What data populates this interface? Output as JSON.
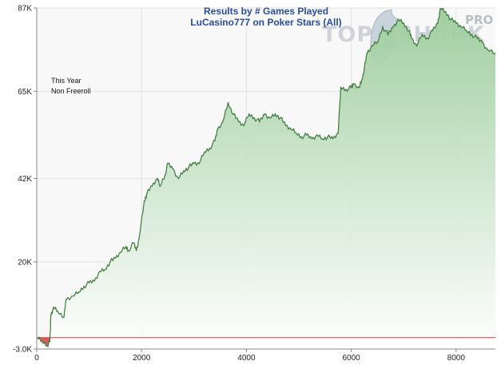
{
  "chart_data": {
    "type": "area",
    "title": "Results by # Games Played",
    "subtitle": "LuCasino777 on Poker Stars (All)",
    "annotations": [
      "This Year",
      "Non Freeroll"
    ],
    "xlabel": "",
    "ylabel": "",
    "xlim": [
      0,
      8750
    ],
    "ylim": [
      -3000,
      87000
    ],
    "x_ticks": [
      0,
      2000,
      4000,
      6000,
      8000
    ],
    "x_tick_labels": [
      "0",
      "2000",
      "4000",
      "6000",
      "8000"
    ],
    "y_ticks": [
      -3000,
      20000,
      42000,
      65000,
      87000
    ],
    "y_tick_labels": [
      "-3.0K",
      "20K",
      "42K",
      "65K",
      "87K"
    ],
    "grid": true,
    "legend": "none",
    "reference_line": 0,
    "colors": {
      "line": "#3d7a3d",
      "fill_top": "#9ccc9c",
      "fill_bottom": "#ffffff",
      "zero_line": "#cc4444",
      "negative_fill": "#d04040",
      "title": "#2a4c9a",
      "plot_bg": "#f8f8f8",
      "grid": "#e2e2e2"
    },
    "series": [
      {
        "name": "",
        "points": [
          [
            0,
            0
          ],
          [
            100,
            -1000
          ],
          [
            200,
            -2000
          ],
          [
            250,
            -1000
          ],
          [
            270,
            6000
          ],
          [
            320,
            8000
          ],
          [
            400,
            7000
          ],
          [
            520,
            5500
          ],
          [
            560,
            10000
          ],
          [
            700,
            11000
          ],
          [
            800,
            12000
          ],
          [
            900,
            13500
          ],
          [
            1000,
            14500
          ],
          [
            1100,
            15000
          ],
          [
            1200,
            17500
          ],
          [
            1300,
            18000
          ],
          [
            1400,
            20000
          ],
          [
            1500,
            21000
          ],
          [
            1600,
            22500
          ],
          [
            1700,
            24000
          ],
          [
            1750,
            23000
          ],
          [
            1850,
            25000
          ],
          [
            1900,
            23000
          ],
          [
            1950,
            26000
          ],
          [
            2050,
            36000
          ],
          [
            2100,
            38000
          ],
          [
            2200,
            40000
          ],
          [
            2300,
            42000
          ],
          [
            2350,
            40000
          ],
          [
            2450,
            43000
          ],
          [
            2500,
            46000
          ],
          [
            2600,
            44500
          ],
          [
            2700,
            42000
          ],
          [
            2800,
            44000
          ],
          [
            2900,
            45000
          ],
          [
            3000,
            46000
          ],
          [
            3100,
            46000
          ],
          [
            3200,
            49000
          ],
          [
            3300,
            50000
          ],
          [
            3400,
            52000
          ],
          [
            3450,
            55000
          ],
          [
            3550,
            57000
          ],
          [
            3650,
            62000
          ],
          [
            3750,
            59000
          ],
          [
            3850,
            57000
          ],
          [
            3950,
            56000
          ],
          [
            4050,
            59000
          ],
          [
            4150,
            58000
          ],
          [
            4250,
            57000
          ],
          [
            4350,
            59000
          ],
          [
            4450,
            58000
          ],
          [
            4550,
            59000
          ],
          [
            4650,
            58000
          ],
          [
            4750,
            56000
          ],
          [
            4850,
            55000
          ],
          [
            4950,
            54000
          ],
          [
            5050,
            53000
          ],
          [
            5150,
            53500
          ],
          [
            5250,
            52500
          ],
          [
            5350,
            53500
          ],
          [
            5450,
            52500
          ],
          [
            5550,
            53000
          ],
          [
            5650,
            52500
          ],
          [
            5750,
            54000
          ],
          [
            5800,
            66000
          ],
          [
            5900,
            65500
          ],
          [
            6000,
            66000
          ],
          [
            6050,
            67000
          ],
          [
            6150,
            66000
          ],
          [
            6200,
            68000
          ],
          [
            6250,
            71000
          ],
          [
            6300,
            75000
          ],
          [
            6400,
            77000
          ],
          [
            6500,
            78000
          ],
          [
            6600,
            82000
          ],
          [
            6700,
            80000
          ],
          [
            6800,
            82000
          ],
          [
            6900,
            84000
          ],
          [
            7000,
            83000
          ],
          [
            7100,
            81000
          ],
          [
            7150,
            79000
          ],
          [
            7250,
            77000
          ],
          [
            7350,
            80000
          ],
          [
            7450,
            79000
          ],
          [
            7550,
            81000
          ],
          [
            7650,
            83000
          ],
          [
            7700,
            87000
          ],
          [
            7800,
            86000
          ],
          [
            7900,
            84000
          ],
          [
            8000,
            83000
          ],
          [
            8100,
            82000
          ],
          [
            8200,
            81000
          ],
          [
            8300,
            80000
          ],
          [
            8400,
            79000
          ],
          [
            8500,
            78000
          ],
          [
            8600,
            76000
          ],
          [
            8750,
            75000
          ]
        ]
      }
    ]
  }
}
